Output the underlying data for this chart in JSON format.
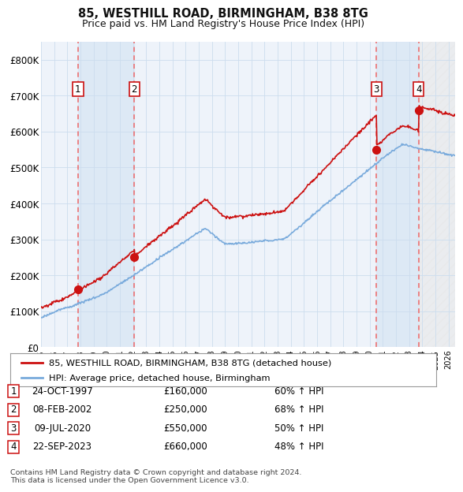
{
  "title1": "85, WESTHILL ROAD, BIRMINGHAM, B38 8TG",
  "title2": "Price paid vs. HM Land Registry's House Price Index (HPI)",
  "xlim": [
    1995.0,
    2026.5
  ],
  "ylim": [
    0,
    850000
  ],
  "yticks": [
    0,
    100000,
    200000,
    300000,
    400000,
    500000,
    600000,
    700000,
    800000
  ],
  "ytick_labels": [
    "£0",
    "£100K",
    "£200K",
    "£300K",
    "£400K",
    "£500K",
    "£600K",
    "£700K",
    "£800K"
  ],
  "xticks": [
    1995,
    1996,
    1997,
    1998,
    1999,
    2000,
    2001,
    2002,
    2003,
    2004,
    2005,
    2006,
    2007,
    2008,
    2009,
    2010,
    2011,
    2012,
    2013,
    2014,
    2015,
    2016,
    2017,
    2018,
    2019,
    2020,
    2021,
    2022,
    2023,
    2024,
    2025,
    2026
  ],
  "sale_dates": [
    1997.81,
    2002.1,
    2020.52,
    2023.72
  ],
  "sale_prices": [
    160000,
    250000,
    550000,
    660000
  ],
  "sale_labels": [
    "1",
    "2",
    "3",
    "4"
  ],
  "hpi_line_color": "#7aabdc",
  "price_line_color": "#cc1111",
  "sale_marker_color": "#cc1111",
  "grid_color": "#ccddee",
  "vline_color": "#ee6666",
  "shade_color": "#dce8f5",
  "legend_entries": [
    "85, WESTHILL ROAD, BIRMINGHAM, B38 8TG (detached house)",
    "HPI: Average price, detached house, Birmingham"
  ],
  "table_rows": [
    [
      "1",
      "24-OCT-1997",
      "£160,000",
      "60% ↑ HPI"
    ],
    [
      "2",
      "08-FEB-2002",
      "£250,000",
      "68% ↑ HPI"
    ],
    [
      "3",
      "09-JUL-2020",
      "£550,000",
      "50% ↑ HPI"
    ],
    [
      "4",
      "22-SEP-2023",
      "£660,000",
      "48% ↑ HPI"
    ]
  ],
  "footnote": "Contains HM Land Registry data © Crown copyright and database right 2024.\nThis data is licensed under the Open Government Licence v3.0.",
  "bg_color": "#ffffff",
  "plot_bg_color": "#eef3fa"
}
